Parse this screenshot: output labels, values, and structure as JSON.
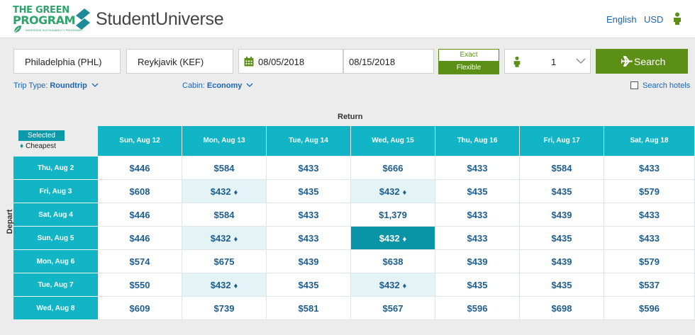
{
  "header": {
    "tgp_line1": "THE GREEN",
    "tgp_line2": "PROGRAM",
    "tgp_tagline": "IMMERSIVE SUSTAINABILITY PROGRAMS",
    "brand": "StudentUniverse",
    "language": "English",
    "currency": "USD"
  },
  "search": {
    "origin": "Philadelphia (PHL)",
    "destination": "Reykjavik (KEF)",
    "depart_date": "08/05/2018",
    "return_date": "08/15/2018",
    "exact_label": "Exact",
    "flexible_label": "Flexible",
    "passengers": "1",
    "search_label": "Search"
  },
  "options": {
    "trip_type_label": "Trip Type:",
    "trip_type_value": "Roundtrip",
    "cabin_label": "Cabin:",
    "cabin_value": "Economy",
    "search_hotels": "Search hotels"
  },
  "grid": {
    "return_label": "Return",
    "depart_label": "Depart",
    "legend_selected": "Selected",
    "legend_cheapest": "Cheapest",
    "return_dates": [
      "Sun, Aug 12",
      "Mon, Aug 13",
      "Tue, Aug 14",
      "Wed, Aug 15",
      "Thu, Aug 16",
      "Fri, Aug 17",
      "Sat, Aug 18"
    ],
    "depart_dates": [
      "Thu, Aug 2",
      "Fri, Aug 3",
      "Sat, Aug 4",
      "Sun, Aug 5",
      "Mon, Aug 6",
      "Tue, Aug 7",
      "Wed, Aug 8"
    ],
    "prices": [
      [
        "$446",
        "$584",
        "$433",
        "$666",
        "$433",
        "$584",
        "$433"
      ],
      [
        "$608",
        "$432",
        "$435",
        "$432",
        "$435",
        "$435",
        "$579"
      ],
      [
        "$446",
        "$584",
        "$433",
        "$1,379",
        "$433",
        "$439",
        "$433"
      ],
      [
        "$446",
        "$432",
        "$433",
        "$432",
        "$433",
        "$435",
        "$433"
      ],
      [
        "$574",
        "$675",
        "$439",
        "$638",
        "$439",
        "$439",
        "$579"
      ],
      [
        "$550",
        "$432",
        "$435",
        "$432",
        "$435",
        "$435",
        "$537"
      ],
      [
        "$609",
        "$739",
        "$581",
        "$567",
        "$596",
        "$698",
        "$596"
      ]
    ],
    "cheapest_cells": [
      [
        1,
        1
      ],
      [
        1,
        3
      ],
      [
        3,
        1
      ],
      [
        3,
        3
      ],
      [
        5,
        1
      ],
      [
        5,
        3
      ]
    ],
    "selected_cell": [
      3,
      3
    ]
  },
  "colors": {
    "header_teal": "#12b5c6",
    "selected_teal": "#0a95a7",
    "cheapest_bg": "#e4f3f6",
    "action_green": "#5c8f16",
    "link_blue": "#1c66b3",
    "price_blue": "#1f5d8d"
  },
  "icons": {
    "calendar": "calendar-icon",
    "person": "person-icon",
    "plane": "plane-icon",
    "chevron": "chevron-down-icon",
    "diamond": "diamond-icon"
  }
}
